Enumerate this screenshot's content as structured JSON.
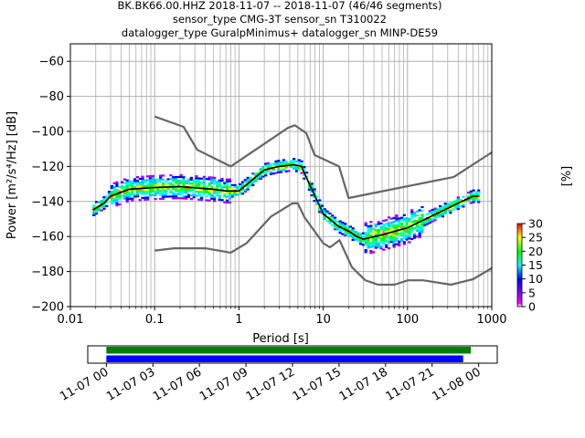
{
  "chart_data": [
    {
      "type": "heatmap",
      "title_lines": [
        "BK.BK66.00.HHZ   2018-11-07 -- 2018-11-07  (46/46 segments)",
        "sensor_type CMG-3T sensor_sn T310022",
        "datalogger_type GuralpMinimus+ datalogger_sn MINP-DE59"
      ],
      "xlabel": "Period [s]",
      "ylabel": "Power [m²/s⁴/Hz] [dB]",
      "xscale": "log",
      "xlim": [
        0.01,
        1000
      ],
      "ylim": [
        -200,
        -50
      ],
      "x_ticks": [
        0.01,
        0.1,
        1,
        10,
        100,
        1000
      ],
      "x_tick_labels": [
        "0.01",
        "0.1",
        "1",
        "10",
        "100",
        "1000"
      ],
      "y_ticks": [
        -200,
        -180,
        -160,
        -140,
        -120,
        -100,
        -80,
        -60
      ],
      "y_tick_labels": [
        "−200",
        "−180",
        "−160",
        "−140",
        "−120",
        "−100",
        "−80",
        "−60"
      ],
      "grid": true,
      "colors": {
        "model_lines": "#666666",
        "mean_line": "#000000",
        "grid": "#b0b0b0"
      },
      "series": [
        {
          "role": "high-noise-model",
          "x": [
            0.1,
            0.22,
            0.32,
            0.8,
            3.8,
            4.6,
            6.3,
            7.9,
            15.4,
            20,
            354.8,
            1000
          ],
          "y": [
            -91.5,
            -97.4,
            -110.5,
            -120,
            -98,
            -96.5,
            -101,
            -113.5,
            -120,
            -138,
            -126,
            -112
          ]
        },
        {
          "role": "low-noise-model",
          "x": [
            0.1,
            0.17,
            0.4,
            0.8,
            1.24,
            2.4,
            4.3,
            5.0,
            6.0,
            10,
            12,
            15.6,
            21.9,
            31.6,
            45,
            70,
            101,
            154,
            328,
            600,
            1000
          ],
          "y": [
            -168,
            -166.7,
            -166.7,
            -169.2,
            -163.7,
            -148.6,
            -141.1,
            -141.1,
            -149.0,
            -163.8,
            -166.2,
            -162.1,
            -177.5,
            -185.0,
            -187.5,
            -187.5,
            -185.0,
            -185.0,
            -187.5,
            -184.4,
            -178
          ]
        },
        {
          "role": "mean-psd",
          "x": [
            0.019,
            0.025,
            0.03,
            0.05,
            0.1,
            0.2,
            0.5,
            0.7,
            1.0,
            1.5,
            2.0,
            3.0,
            4.5,
            5.5,
            7.0,
            10,
            15,
            20,
            25,
            30,
            50,
            100,
            200,
            400,
            600,
            700
          ],
          "y": [
            -144.5,
            -141,
            -137,
            -133,
            -132,
            -131.5,
            -133,
            -134,
            -134,
            -127,
            -122,
            -120,
            -119,
            -120,
            -131,
            -147,
            -154,
            -157,
            -160,
            -161.5,
            -159,
            -155,
            -148,
            -141,
            -137,
            -137
          ]
        }
      ],
      "colorbar": {
        "label": "[%]",
        "range": [
          0,
          30
        ],
        "ticks": [
          0,
          5,
          10,
          15,
          20,
          25,
          30
        ],
        "colormap": "pqlx"
      }
    },
    {
      "type": "timeline",
      "description_free": true,
      "x_tick_labels": [
        "11-07 00",
        "11-07 03",
        "11-07 06",
        "11-07 09",
        "11-07 12",
        "11-07 15",
        "11-07 18",
        "11-07 21",
        "11-08 00"
      ],
      "x_range_hours": [
        -1.2,
        25.2
      ],
      "bars": [
        {
          "color": "#008000",
          "start_hour": 0,
          "end_hour": 23.5
        },
        {
          "color": "#0000ff",
          "start_hour": 0,
          "end_hour": 23.0
        }
      ]
    }
  ]
}
